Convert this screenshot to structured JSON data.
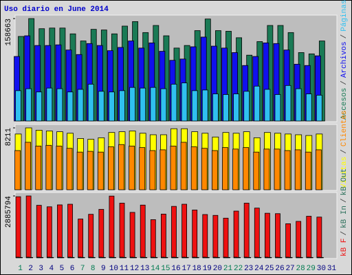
{
  "chart_data": [
    {
      "type": "bar",
      "title": "Uso diario en June 2014",
      "categories": [
        "1",
        "2",
        "3",
        "4",
        "5",
        "6",
        "7",
        "8",
        "9",
        "10",
        "11",
        "12",
        "13",
        "14",
        "15",
        "16",
        "17",
        "18",
        "19",
        "20",
        "21",
        "22",
        "23",
        "24",
        "25",
        "26",
        "27",
        "28",
        "29",
        "30",
        "31"
      ],
      "category_colors": [
        "#007a50",
        "#000080",
        "#000080",
        "#000080",
        "#000080",
        "#000080",
        "#007a50",
        "#007a50",
        "#000080",
        "#000080",
        "#000080",
        "#000080",
        "#000080",
        "#007a50",
        "#007a50",
        "#000080",
        "#000080",
        "#000080",
        "#000080",
        "#000080",
        "#007a50",
        "#007a50",
        "#000080",
        "#000080",
        "#000080",
        "#000080",
        "#000080",
        "#007a50",
        "#007a50",
        "#000080",
        "#000080"
      ],
      "separator": "/",
      "ylim": [
        0,
        158663
      ],
      "yticks": [
        158663
      ],
      "series": [
        {
          "name": "Accesos",
          "color": "#1a7a55",
          "values": [
            131000,
            158663,
            143000,
            144000,
            144000,
            135000,
            124000,
            142000,
            141000,
            135000,
            147000,
            154000,
            137000,
            148000,
            132000,
            113000,
            117000,
            140000,
            158000,
            140000,
            139000,
            129000,
            102000,
            123000,
            148000,
            148000,
            137000,
            106000,
            104000,
            124000,
            null
          ]
        },
        {
          "name": "Archivos",
          "color": "#1010ee",
          "values": [
            100000,
            132000,
            117000,
            117000,
            118000,
            110000,
            103000,
            120000,
            117000,
            109000,
            114000,
            124000,
            113000,
            121000,
            108000,
            94000,
            96000,
            115000,
            130000,
            116000,
            113000,
            106000,
            86000,
            100000,
            121000,
            120000,
            110000,
            88000,
            86000,
            101000,
            null
          ]
        },
        {
          "name": "Páginas",
          "color": "#30c0f0",
          "values": [
            47000,
            50000,
            45000,
            51000,
            50000,
            45000,
            49000,
            57000,
            46000,
            45000,
            47000,
            52000,
            51000,
            52000,
            50000,
            57000,
            59000,
            47000,
            48000,
            42000,
            41000,
            42000,
            46000,
            54000,
            49000,
            41000,
            55000,
            50000,
            42000,
            40000,
            null
          ]
        }
      ]
    },
    {
      "type": "bar",
      "separator": "/",
      "ylim": [
        0,
        8211
      ],
      "yticks": [
        8211
      ],
      "series": [
        {
          "name": "Visitas",
          "color": "#ffff00",
          "values": [
            7400,
            8211,
            7900,
            7800,
            7700,
            7500,
            6800,
            6700,
            6900,
            7600,
            7700,
            7800,
            7500,
            7300,
            7300,
            8100,
            8100,
            7700,
            7500,
            7000,
            7600,
            7500,
            7700,
            6900,
            7600,
            7500,
            7400,
            7300,
            7200,
            7400,
            null
          ]
        },
        {
          "name": "Clientes",
          "color": "#ff8800",
          "values": [
            5200,
            6300,
            5800,
            5900,
            5800,
            5500,
            5000,
            5100,
            5000,
            5700,
            6000,
            5800,
            5600,
            5200,
            5300,
            5800,
            6300,
            5700,
            5500,
            5200,
            5600,
            5400,
            5600,
            5000,
            5400,
            5400,
            5200,
            5300,
            5000,
            5300,
            null
          ]
        }
      ]
    },
    {
      "type": "bar",
      "separator": "/",
      "ylim": [
        0,
        2885794
      ],
      "yticks": [
        2885794
      ],
      "series": [
        {
          "name": "kB F",
          "color": "#ee1111",
          "values": [
            2850000,
            2885794,
            2450000,
            2380000,
            2470000,
            2500000,
            1810000,
            2030000,
            2260000,
            2880000,
            2550000,
            2120000,
            2460000,
            1780000,
            2040000,
            2400000,
            2500000,
            2230000,
            2020000,
            1980000,
            1850000,
            2180000,
            2550000,
            2320000,
            2080000,
            2060000,
            1590000,
            1700000,
            1940000,
            1900000,
            null
          ]
        },
        {
          "name": "kB In",
          "color": "#2a6f5a",
          "values": [
            30000,
            30000,
            30000,
            30000,
            30000,
            30000,
            30000,
            30000,
            30000,
            30000,
            30000,
            30000,
            30000,
            30000,
            30000,
            30000,
            30000,
            30000,
            30000,
            30000,
            30000,
            30000,
            30000,
            30000,
            30000,
            30000,
            30000,
            30000,
            30000,
            30000,
            null
          ]
        },
        {
          "name": "kB Out",
          "color": "#2a6f5a",
          "values": [
            20000,
            20000,
            20000,
            20000,
            20000,
            20000,
            20000,
            20000,
            20000,
            20000,
            20000,
            20000,
            20000,
            20000,
            20000,
            20000,
            20000,
            20000,
            20000,
            20000,
            20000,
            20000,
            20000,
            20000,
            20000,
            20000,
            20000,
            20000,
            20000,
            20000,
            null
          ]
        }
      ]
    }
  ]
}
